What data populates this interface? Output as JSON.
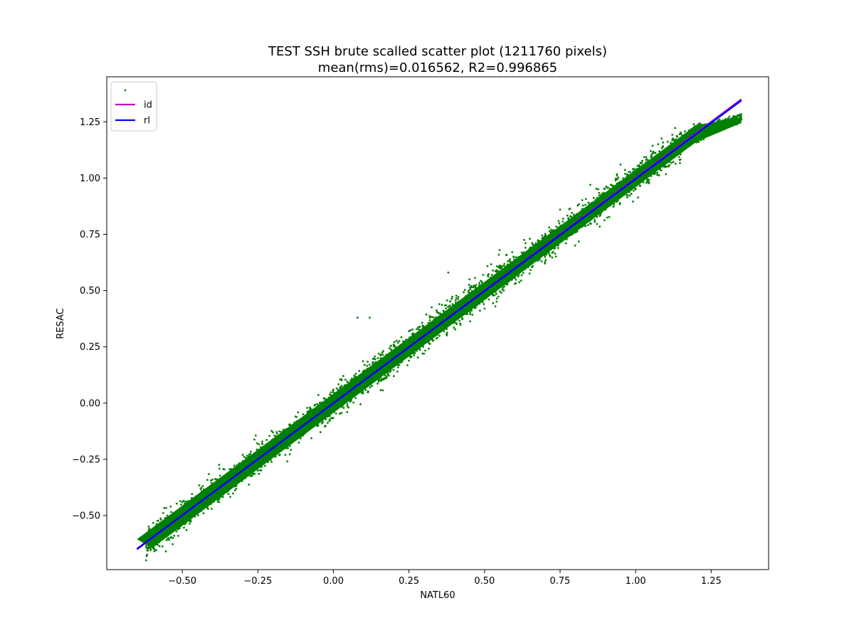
{
  "chart_data": {
    "type": "scatter",
    "title": "TEST SSH brute scalled scatter plot (1211760 pixels)",
    "subtitle": "mean(rms)=0.016562, R2=0.996865",
    "xlabel": "NATL60",
    "ylabel": "RESAC",
    "xlim": [
      -0.75,
      1.44
    ],
    "ylim": [
      -0.74,
      1.45
    ],
    "xticks": [
      -0.5,
      -0.25,
      0.0,
      0.25,
      0.5,
      0.75,
      1.0,
      1.25
    ],
    "xtick_labels": [
      "−0.50",
      "−0.25",
      "0.00",
      "0.25",
      "0.50",
      "0.75",
      "1.00",
      "1.25"
    ],
    "yticks": [
      -0.5,
      -0.25,
      0.0,
      0.25,
      0.5,
      0.75,
      1.0,
      1.25
    ],
    "ytick_labels": [
      "−0.50",
      "−0.25",
      "0.00",
      "0.25",
      "0.50",
      "0.75",
      "1.00",
      "1.25"
    ],
    "grid": false,
    "legend_position": "top-left",
    "legend": [
      {
        "label": "",
        "kind": "marker",
        "color": "#008000"
      },
      {
        "label": "id",
        "kind": "line",
        "color": "#bf00bf"
      },
      {
        "label": "rl",
        "kind": "line",
        "color": "#0000ff"
      }
    ],
    "series": [
      {
        "kind": "scatter",
        "color": "#008000",
        "points_count": 1211760,
        "center_line": {
          "slope": 1.0,
          "intercept": 0.0
        },
        "x_range": [
          -0.65,
          1.35
        ],
        "spread_rms": 0.016562,
        "outer_spread_y": 0.07,
        "samples": [
          [
            -0.64,
            -0.6
          ],
          [
            -0.6,
            -0.58
          ],
          [
            -0.55,
            -0.5
          ],
          [
            -0.5,
            -0.44
          ],
          [
            -0.45,
            -0.42
          ],
          [
            -0.4,
            -0.34
          ],
          [
            -0.35,
            -0.38
          ],
          [
            -0.3,
            -0.23
          ],
          [
            -0.25,
            -0.3
          ],
          [
            -0.2,
            -0.13
          ],
          [
            -0.15,
            -0.2
          ],
          [
            -0.1,
            -0.05
          ],
          [
            -0.05,
            -0.1
          ],
          [
            0.0,
            0.06
          ],
          [
            0.05,
            -0.02
          ],
          [
            0.08,
            0.38
          ],
          [
            0.12,
            0.38
          ],
          [
            0.15,
            0.22
          ],
          [
            0.2,
            0.12
          ],
          [
            0.25,
            0.32
          ],
          [
            0.3,
            0.22
          ],
          [
            0.35,
            0.44
          ],
          [
            0.38,
            0.58
          ],
          [
            0.4,
            0.36
          ],
          [
            0.45,
            0.55
          ],
          [
            0.5,
            0.42
          ],
          [
            0.55,
            0.68
          ],
          [
            0.6,
            0.53
          ],
          [
            0.65,
            0.73
          ],
          [
            0.7,
            0.62
          ],
          [
            0.75,
            0.86
          ],
          [
            0.8,
            0.7
          ],
          [
            0.85,
            0.97
          ],
          [
            0.9,
            0.86
          ],
          [
            0.95,
            1.06
          ],
          [
            1.0,
            0.95
          ],
          [
            1.05,
            1.12
          ],
          [
            1.1,
            1.05
          ],
          [
            1.15,
            1.2
          ],
          [
            1.2,
            1.18
          ],
          [
            1.25,
            1.23
          ],
          [
            1.3,
            1.25
          ],
          [
            1.35,
            1.26
          ]
        ]
      },
      {
        "kind": "line",
        "name": "id",
        "color": "#bf00bf",
        "x": [
          -0.65,
          1.35
        ],
        "y": [
          -0.65,
          1.35
        ]
      },
      {
        "kind": "line",
        "name": "rl",
        "color": "#0000ff",
        "x": [
          -0.65,
          1.35
        ],
        "y": [
          -0.648,
          1.345
        ]
      }
    ]
  }
}
